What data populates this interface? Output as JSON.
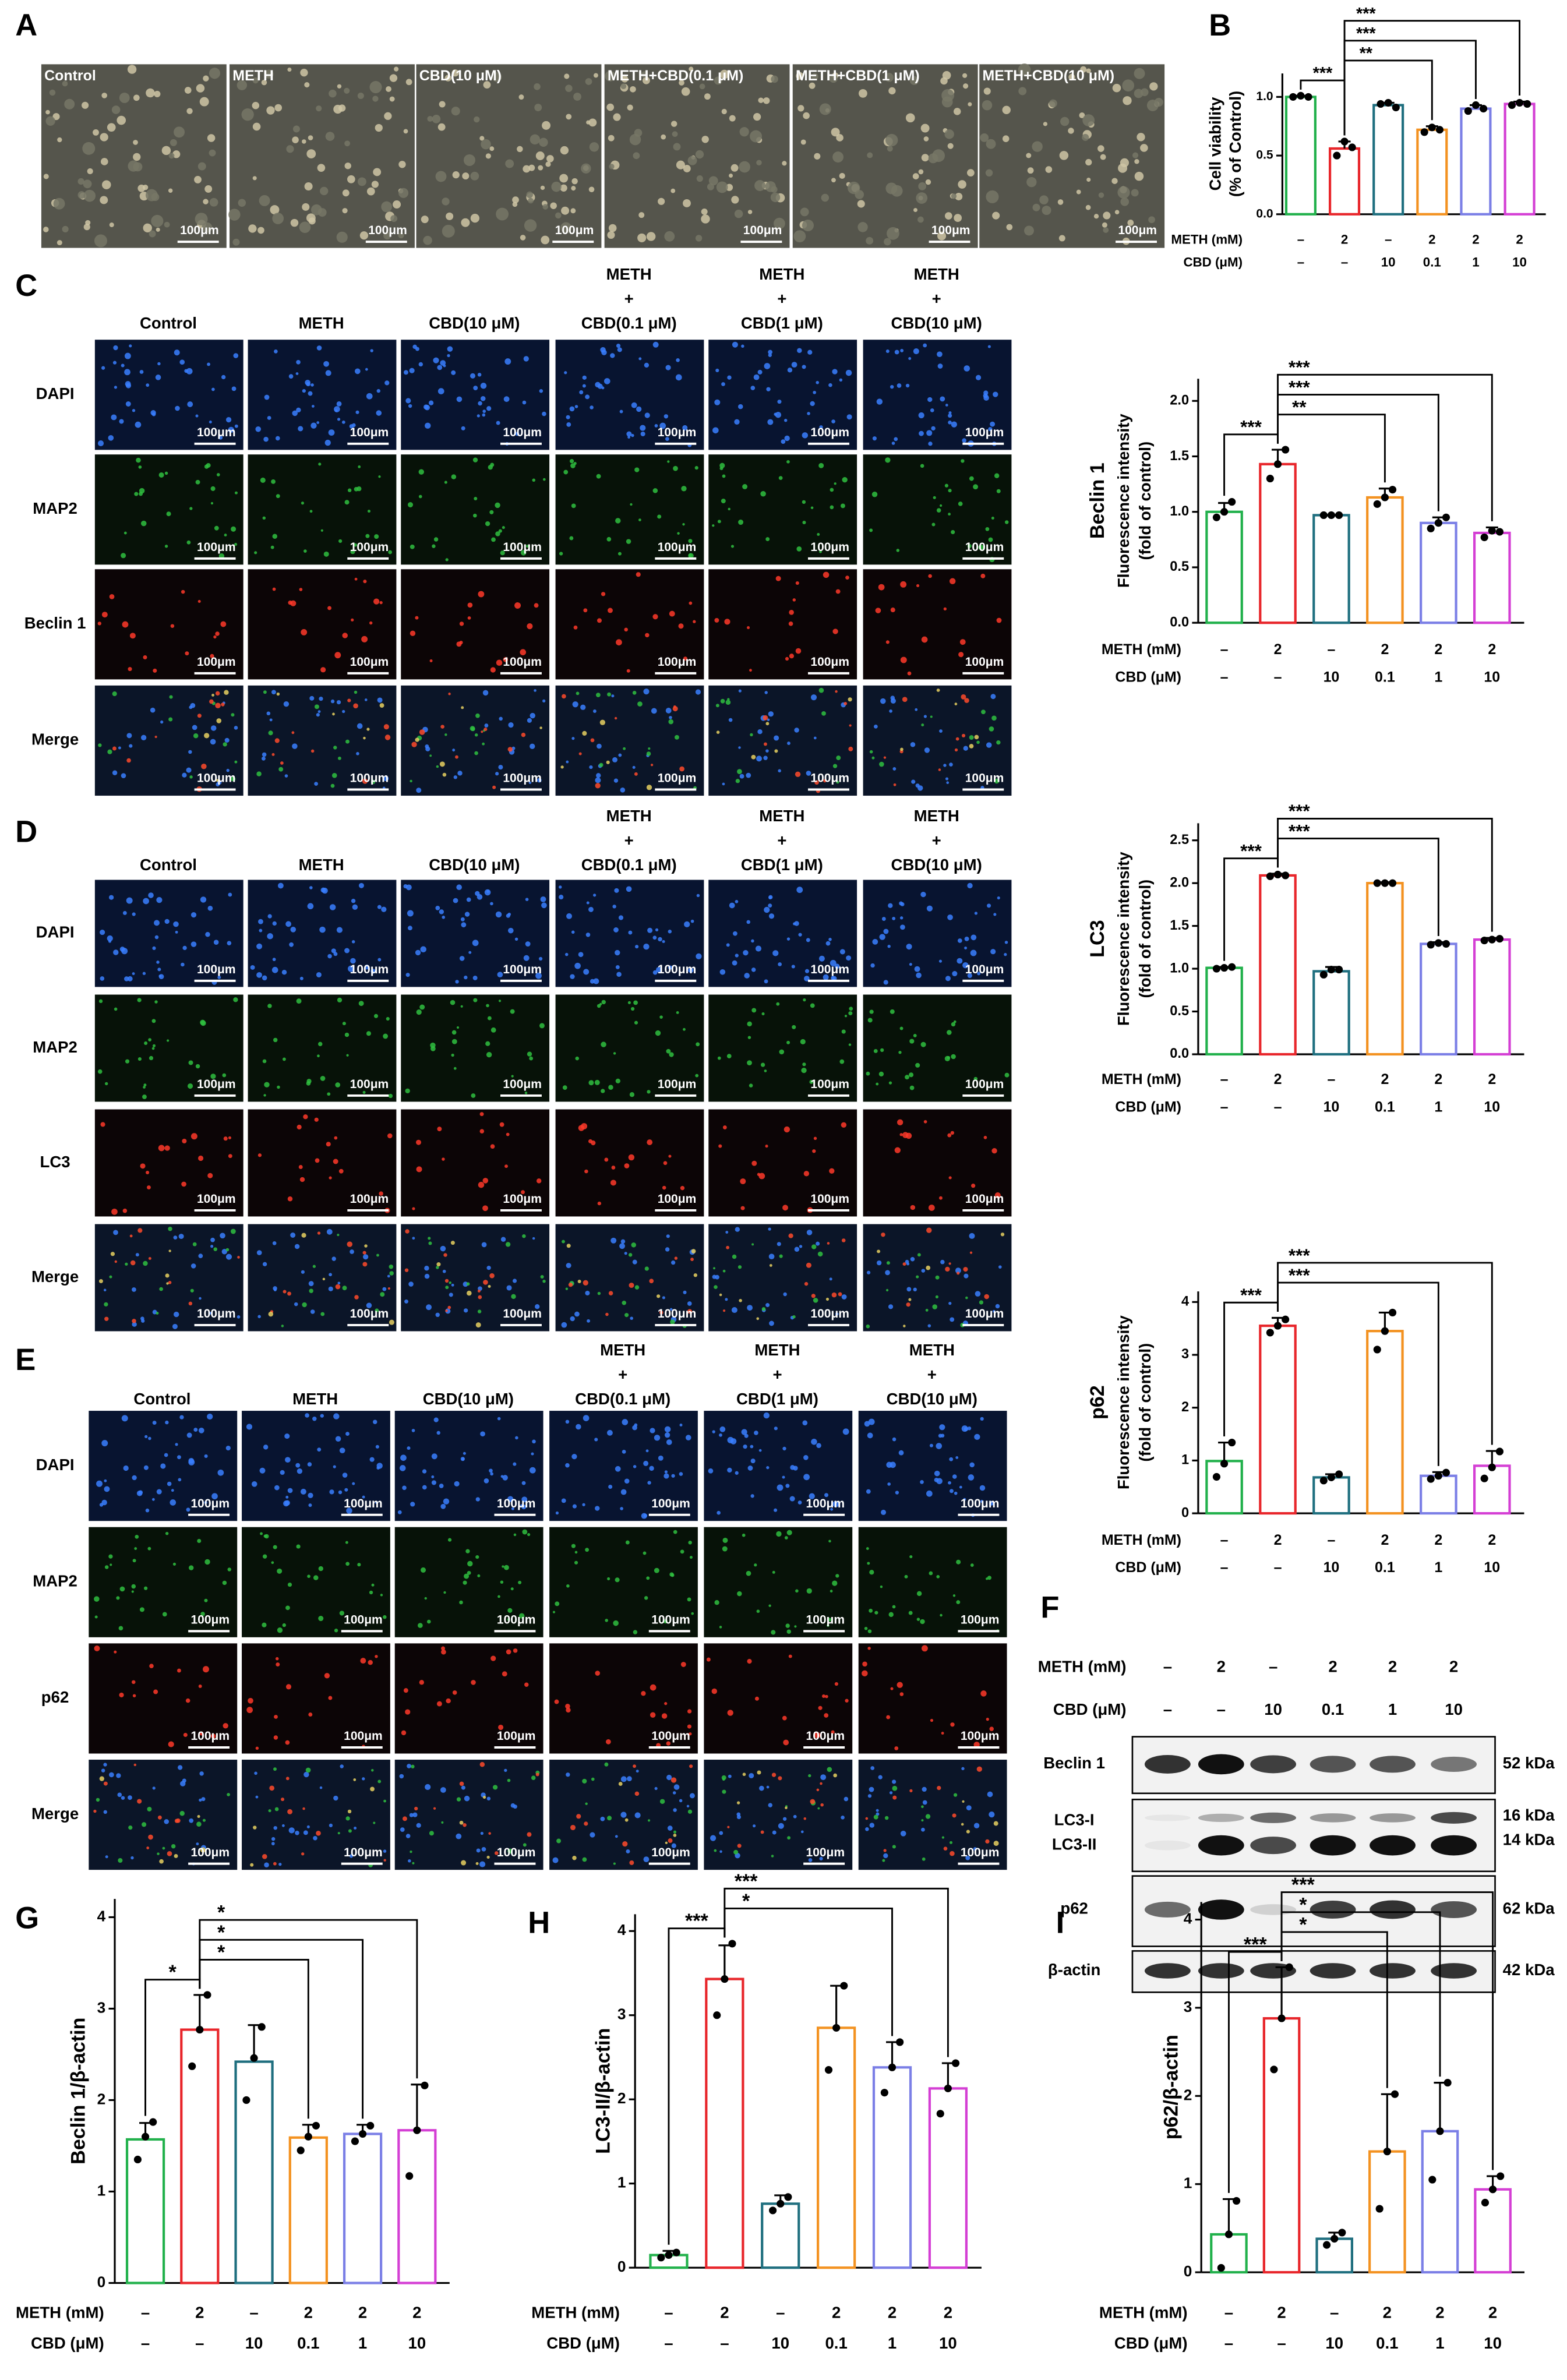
{
  "panel_letters": [
    "A",
    "B",
    "C",
    "D",
    "E",
    "F",
    "G",
    "H",
    "I"
  ],
  "scale_bar": "100μm",
  "panel_a": {
    "labels": [
      "Control",
      "METH",
      "CBD(10 μM)",
      "METH+CBD(0.1 μM)",
      "METH+CBD(1 μM)",
      "METH+CBD(10 μM)"
    ]
  },
  "columns": [
    [
      "Control"
    ],
    [
      "METH"
    ],
    [
      "CBD(10 μM)"
    ],
    [
      "METH",
      "+",
      "CBD(0.1 μM)"
    ],
    [
      "METH",
      "+",
      "CBD(1 μM)"
    ],
    [
      "METH",
      "+",
      "CBD(10 μM)"
    ]
  ],
  "panel_c": {
    "rows": [
      "DAPI",
      "MAP2",
      "Beclin 1",
      "Merge"
    ]
  },
  "panel_d": {
    "rows": [
      "DAPI",
      "MAP2",
      "LC3",
      "Merge"
    ]
  },
  "panel_e": {
    "rows": [
      "DAPI",
      "MAP2",
      "p62",
      "Merge"
    ]
  },
  "treatments": [
    {
      "label": "METH (mM)",
      "values": [
        "–",
        "2",
        "–",
        "2",
        "2",
        "2"
      ]
    },
    {
      "label": "CBD (μM)",
      "values": [
        "–",
        "–",
        "10",
        "0.1",
        "1",
        "10"
      ]
    }
  ],
  "western_blot": {
    "proteins": [
      "Beclin 1",
      "LC3-I",
      "LC3-II",
      "p62",
      "β-actin"
    ],
    "kda": [
      "52 kDa",
      "16 kDa",
      "14 kDa",
      "62 kDa",
      "42 kDa"
    ]
  },
  "chart_data": [
    {
      "type": "bar",
      "ylabel": [
        "Cell viability",
        "(% of Control)"
      ],
      "ylim": [
        0,
        1.2
      ],
      "yticks": [
        {
          "value": 0,
          "label": "0.0"
        },
        0.5,
        {
          "value": 1,
          "label": "1.0"
        }
      ],
      "colors": [
        "#22b14c",
        "#e8262b",
        "#1f6f7f",
        "#f39221",
        "#7b7fe6",
        "#d43fd4"
      ],
      "values": [
        1.0,
        0.56,
        0.93,
        0.72,
        0.9,
        0.94
      ],
      "errors": [
        0.01,
        0.06,
        0.02,
        0.03,
        0.03,
        0.02
      ],
      "points": [
        [
          1.0,
          1.01,
          1.0
        ],
        [
          0.5,
          0.62,
          0.57
        ],
        [
          0.94,
          0.95,
          0.91
        ],
        [
          0.7,
          0.74,
          0.72
        ],
        [
          0.88,
          0.93,
          0.9
        ],
        [
          0.93,
          0.95,
          0.94
        ]
      ],
      "annotations": [
        "***",
        "**",
        "***",
        "***"
      ]
    },
    {
      "type": "bar",
      "ylabel": [
        "Beclin 1",
        "Fluorescence intensity",
        "(fold of control)"
      ],
      "ylim": [
        0,
        2.2
      ],
      "yticks": [
        {
          "value": 0,
          "label": "0.0"
        },
        0.5,
        {
          "value": 1,
          "label": "1.0"
        },
        1.5,
        {
          "value": 2,
          "label": "2.0"
        }
      ],
      "colors": [
        "#22b14c",
        "#e8262b",
        "#1f6f7f",
        "#f39221",
        "#7b7fe6",
        "#d43fd4"
      ],
      "values": [
        1.0,
        1.43,
        0.97,
        1.13,
        0.9,
        0.81
      ],
      "errors": [
        0.08,
        0.13,
        0.0,
        0.08,
        0.05,
        0.05
      ],
      "points": [
        [
          0.95,
          1.0,
          1.09
        ],
        [
          1.3,
          1.43,
          1.56
        ],
        [
          0.97,
          0.97,
          0.97
        ],
        [
          1.07,
          1.13,
          1.2
        ],
        [
          0.85,
          0.9,
          0.95
        ],
        [
          0.77,
          0.83,
          0.82
        ]
      ],
      "annotations": [
        "***",
        "**",
        "***",
        "***"
      ]
    },
    {
      "type": "bar",
      "ylabel": [
        "LC3",
        "Fluorescence intensity",
        "(fold of control)"
      ],
      "ylim": [
        0,
        2.7
      ],
      "yticks": [
        {
          "value": 0,
          "label": "0.0"
        },
        0.5,
        {
          "value": 1,
          "label": "1.0"
        },
        1.5,
        {
          "value": 2,
          "label": "2.0"
        },
        2.5
      ],
      "colors": [
        "#22b14c",
        "#e8262b",
        "#1f6f7f",
        "#f39221",
        "#7b7fe6",
        "#d43fd4"
      ],
      "values": [
        1.01,
        2.09,
        0.97,
        2.0,
        1.29,
        1.34
      ],
      "errors": [
        0.01,
        0.02,
        0.05,
        0.01,
        0.02,
        0.02
      ],
      "points": [
        [
          1.0,
          1.01,
          1.02
        ],
        [
          2.08,
          2.1,
          2.09
        ],
        [
          0.93,
          0.99,
          0.99
        ],
        [
          2.0,
          2.0,
          2.0
        ],
        [
          1.28,
          1.3,
          1.29
        ],
        [
          1.33,
          1.34,
          1.35
        ]
      ],
      "annotations": [
        "***",
        "***",
        "***"
      ]
    },
    {
      "type": "bar",
      "ylabel": [
        "p62",
        "Fluorescence intensity",
        "(fold of control)"
      ],
      "ylim": [
        0,
        4.2
      ],
      "yticks": [
        0,
        1,
        2,
        3,
        4
      ],
      "colors": [
        "#22b14c",
        "#e8262b",
        "#1f6f7f",
        "#f39221",
        "#7b7fe6",
        "#d43fd4"
      ],
      "values": [
        0.99,
        3.55,
        0.68,
        3.45,
        0.71,
        0.9
      ],
      "errors": [
        0.35,
        0.15,
        0.06,
        0.35,
        0.07,
        0.28
      ],
      "points": [
        [
          0.69,
          0.94,
          1.34
        ],
        [
          3.42,
          3.55,
          3.67
        ],
        [
          0.62,
          0.68,
          0.74
        ],
        [
          3.1,
          3.45,
          3.8
        ],
        [
          0.65,
          0.71,
          0.77
        ],
        [
          0.66,
          0.87,
          1.17
        ]
      ],
      "annotations": [
        "***",
        "***",
        "***"
      ]
    },
    {
      "type": "bar",
      "ylabel": [
        "Beclin 1/β-actin"
      ],
      "ylim": [
        0,
        4.2
      ],
      "yticks": [
        0,
        1,
        2,
        3,
        4
      ],
      "colors": [
        "#22b14c",
        "#e8262b",
        "#1f6f7f",
        "#f39221",
        "#7b7fe6",
        "#d43fd4"
      ],
      "values": [
        1.57,
        2.77,
        2.42,
        1.59,
        1.63,
        1.67
      ],
      "errors": [
        0.18,
        0.38,
        0.4,
        0.14,
        0.1,
        0.5
      ],
      "points": [
        [
          1.35,
          1.6,
          1.76
        ],
        [
          2.37,
          2.77,
          3.15
        ],
        [
          2.0,
          2.46,
          2.8
        ],
        [
          1.45,
          1.6,
          1.72
        ],
        [
          1.55,
          1.63,
          1.72
        ],
        [
          1.17,
          1.67,
          2.16
        ]
      ],
      "annotations": [
        "*",
        "*",
        "*",
        "*"
      ]
    },
    {
      "type": "bar",
      "ylabel": [
        "LC3-II/β-actin"
      ],
      "ylim": [
        0,
        4.2
      ],
      "yticks": [
        0,
        1,
        2,
        3,
        4
      ],
      "colors": [
        "#22b14c",
        "#e8262b",
        "#1f6f7f",
        "#f39221",
        "#7b7fe6",
        "#d43fd4"
      ],
      "values": [
        0.15,
        3.43,
        0.76,
        2.85,
        2.38,
        2.13
      ],
      "errors": [
        0.05,
        0.4,
        0.1,
        0.5,
        0.3,
        0.3
      ],
      "points": [
        [
          0.12,
          0.15,
          0.18
        ],
        [
          3.0,
          3.43,
          3.85
        ],
        [
          0.68,
          0.76,
          0.84
        ],
        [
          2.35,
          2.85,
          3.35
        ],
        [
          2.08,
          2.38,
          2.68
        ],
        [
          1.83,
          2.13,
          2.43
        ]
      ],
      "annotations": [
        "***",
        "*",
        "***"
      ]
    },
    {
      "type": "bar",
      "ylabel": [
        "p62/β-actin"
      ],
      "ylim": [
        0,
        4.2
      ],
      "yticks": [
        0,
        1,
        2,
        3,
        4
      ],
      "colors": [
        "#22b14c",
        "#e8262b",
        "#1f6f7f",
        "#f39221",
        "#7b7fe6",
        "#d43fd4"
      ],
      "values": [
        0.43,
        2.88,
        0.38,
        1.37,
        1.6,
        0.94
      ],
      "errors": [
        0.4,
        0.58,
        0.07,
        0.65,
        0.55,
        0.15
      ],
      "points": [
        [
          0.05,
          0.43,
          0.81
        ],
        [
          2.3,
          2.88,
          3.46
        ],
        [
          0.31,
          0.38,
          0.45
        ],
        [
          0.72,
          1.37,
          2.02
        ],
        [
          1.05,
          1.6,
          2.15
        ],
        [
          0.79,
          0.94,
          1.09
        ]
      ],
      "annotations": [
        "***",
        "*",
        "*",
        "***"
      ]
    }
  ]
}
